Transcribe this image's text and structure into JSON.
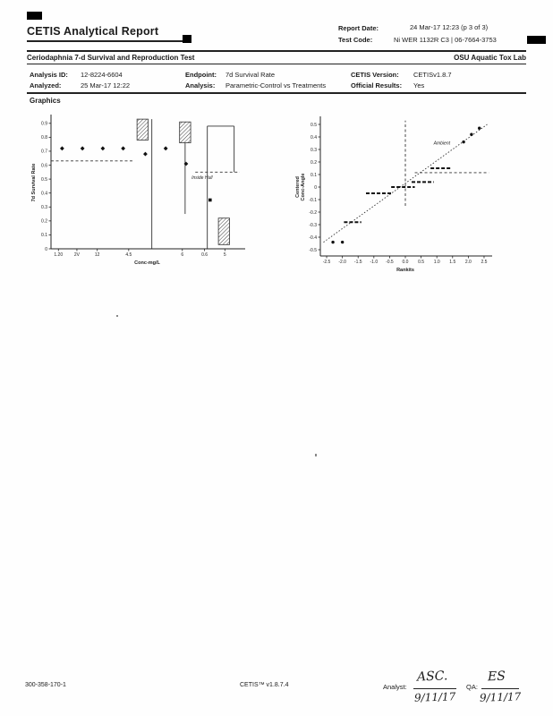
{
  "header": {
    "title": "CETIS Analytical Report",
    "report_date_label": "Report Date:",
    "report_date": "24 Mar-17 12:23 (p 3 of 3)",
    "test_code_label": "Test Code:",
    "test_code": "Ni WER 1132R C3 | 06-7664-3753"
  },
  "subheader": {
    "test_name": "Ceriodaphnia 7-d Survival and Reproduction Test",
    "lab": "OSU Aquatic Tox Lab"
  },
  "info": {
    "analysis_id_label": "Analysis ID:",
    "analysis_id": "12-8224-6604",
    "endpoint_label": "Endpoint:",
    "endpoint": "7d Survival Rate",
    "cetis_version_label": "CETIS Version:",
    "cetis_version": "CETISv1.8.7",
    "analyzed_label": "Analyzed:",
    "analyzed": "25 Mar-17 12:22",
    "analysis_label": "Analysis:",
    "analysis": "Parametric-Control vs Treatments",
    "official_label": "Official Results:",
    "official": "Yes"
  },
  "section": {
    "graphics_label": "Graphics"
  },
  "footer": {
    "doc_number": "300-358-170-1",
    "version": "CETIS™ v1.8.7.4",
    "analyst_label": "Analyst:",
    "analyst_signature": "ASC.",
    "analyst_date": "9/11/17",
    "qa_label": "QA:",
    "qa_signature": "ES",
    "qa_date": "9/11/17"
  },
  "chart_data": [
    {
      "id": "survival",
      "type": "scatter",
      "xlabel": "Conc-mg/L",
      "ylabel": "7d Survival Rate",
      "xlim": [
        0,
        1.04
      ],
      "ylim": [
        0,
        0.95
      ],
      "yticks": [
        0,
        0.1,
        0.2,
        0.3,
        0.4,
        0.5,
        0.6,
        0.7,
        0.8,
        0.9
      ],
      "xticks": [
        {
          "v": 0.04,
          "label": "1.20"
        },
        {
          "v": 0.14,
          "label": "2V"
        },
        {
          "v": 0.25,
          "label": "12"
        },
        {
          "v": 0.42,
          "label": "4.5"
        },
        {
          "v": 0.71,
          "label": "6"
        },
        {
          "v": 0.83,
          "label": "0.6"
        },
        {
          "v": 0.94,
          "label": "5"
        }
      ],
      "points": [
        {
          "x": 0.06,
          "y": 0.72,
          "m": "d"
        },
        {
          "x": 0.17,
          "y": 0.72,
          "m": "d"
        },
        {
          "x": 0.28,
          "y": 0.72,
          "m": "d"
        },
        {
          "x": 0.39,
          "y": 0.72,
          "m": "d"
        },
        {
          "x": 0.51,
          "y": 0.68,
          "m": "d"
        },
        {
          "x": 0.62,
          "y": 0.72,
          "m": "d"
        },
        {
          "x": 0.73,
          "y": 0.61,
          "m": "d"
        },
        {
          "x": 0.86,
          "y": 0.35,
          "m": "s"
        }
      ],
      "segments": [
        {
          "x1": 0.0,
          "x2": 0.45,
          "y": 0.63,
          "dash": "3,2.5"
        },
        {
          "x1": 0.78,
          "x2": 1.02,
          "y": 0.55,
          "dash": "3,2.5"
        },
        {
          "x1": 0.845,
          "x2": 0.99,
          "y": 0.88
        }
      ],
      "vlines": [
        {
          "x": 0.545,
          "y1": 0,
          "y2": 0.93
        },
        {
          "x": 0.725,
          "y1": 0.25,
          "y2": 0.76
        },
        {
          "x": 0.845,
          "y1": 0,
          "y2": 0.88
        },
        {
          "x": 0.99,
          "y1": 0.55,
          "y2": 0.88
        }
      ],
      "boxes": [
        {
          "x1": 0.465,
          "x2": 0.525,
          "y1": 0.78,
          "y2": 0.93
        },
        {
          "x1": 0.695,
          "x2": 0.755,
          "y1": 0.76,
          "y2": 0.91
        },
        {
          "x1": 0.905,
          "x2": 0.965,
          "y1": 0.03,
          "y2": 0.22
        }
      ],
      "annotations": [
        {
          "x": 0.76,
          "y": 0.5,
          "text": "Inside Hull"
        }
      ]
    },
    {
      "id": "rankits",
      "type": "scatter",
      "xlabel": "Rankits",
      "ylabel": "Centered",
      "ylabel2": "Conc-Angle",
      "xlim": [
        -2.7,
        2.7
      ],
      "ylim": [
        -0.55,
        0.55
      ],
      "yticks": [
        -0.5,
        -0.4,
        -0.3,
        -0.2,
        -0.1,
        0,
        0.1,
        0.2,
        0.3,
        0.4,
        0.5
      ],
      "xticks": [
        {
          "v": -2.5,
          "label": "-2.5"
        },
        {
          "v": -2,
          "label": "-2.0"
        },
        {
          "v": -1.5,
          "label": "-1.5"
        },
        {
          "v": -1,
          "label": "-1.0"
        },
        {
          "v": -0.5,
          "label": "-0.5"
        },
        {
          "v": 0,
          "label": "0.0"
        },
        {
          "v": 0.5,
          "label": "0.5"
        },
        {
          "v": 1,
          "label": "1.0"
        },
        {
          "v": 1.5,
          "label": "1.5"
        },
        {
          "v": 2,
          "label": "2.0"
        },
        {
          "v": 2.5,
          "label": "2.5"
        }
      ],
      "line": {
        "x1": -2.6,
        "y1": -0.44,
        "x2": 2.6,
        "y2": 0.5,
        "dash": "1.5,2"
      },
      "vlines": [
        {
          "x": 0,
          "y1": -0.15,
          "y2": 0.53,
          "dash": "3,2.5"
        }
      ],
      "segments": [
        {
          "x1": 0.3,
          "x2": 2.65,
          "y": 0.115,
          "dash": "3,2.5"
        }
      ],
      "dsegs": [
        {
          "x1": -1.95,
          "x2": -1.4,
          "y": -0.28
        },
        {
          "x1": -1.25,
          "x2": -0.4,
          "y": -0.05
        },
        {
          "x1": -0.45,
          "x2": 0.3,
          "y": 0.0
        },
        {
          "x1": 0.2,
          "x2": 0.9,
          "y": 0.04
        },
        {
          "x1": 0.8,
          "x2": 1.45,
          "y": 0.15
        }
      ],
      "points": [
        {
          "x": -2.3,
          "y": -0.44,
          "m": "c"
        },
        {
          "x": -2.0,
          "y": -0.44,
          "m": "c"
        },
        {
          "x": 1.85,
          "y": 0.36,
          "m": "c"
        },
        {
          "x": 2.1,
          "y": 0.42,
          "m": "c"
        },
        {
          "x": 2.35,
          "y": 0.47,
          "m": "c"
        }
      ],
      "annotations": [
        {
          "x": 0.9,
          "y": 0.34,
          "text": "Ambient"
        }
      ]
    }
  ]
}
